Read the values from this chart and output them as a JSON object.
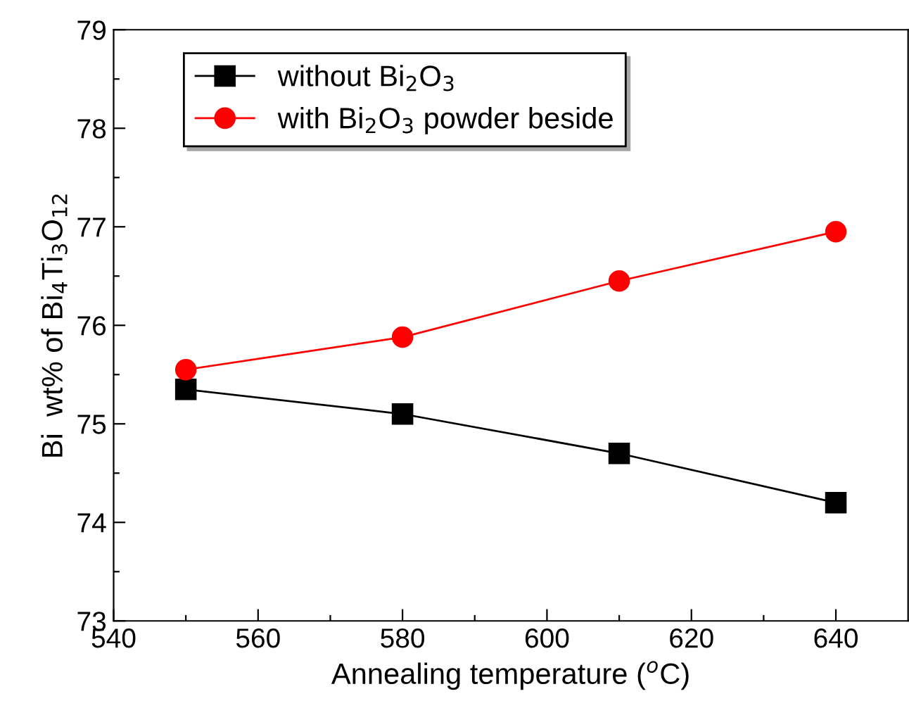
{
  "chart_data": {
    "type": "line",
    "xlabel": "Annealing temperature ($^{o}$C)",
    "ylabel": "Bi  wt% of Bi$_{4}$Ti$_{3}$O$_{12}$",
    "x": [
      550,
      580,
      610,
      640
    ],
    "series": [
      {
        "name": "without Bi$_{2}$O$_{3}$",
        "color": "#000000",
        "marker": "square",
        "values": [
          75.35,
          75.1,
          74.7,
          74.2
        ]
      },
      {
        "name": "with Bi$_{2}$O$_{3}$ powder beside",
        "color": "#ff0000",
        "marker": "circle",
        "values": [
          75.55,
          75.88,
          76.45,
          76.95
        ]
      }
    ],
    "xlim": [
      540,
      650
    ],
    "xticks": [
      540,
      {
        "value": 550,
        "label": null
      },
      560,
      {
        "value": 570,
        "label": null
      },
      580,
      {
        "value": 590,
        "label": null
      },
      600,
      {
        "value": 610,
        "label": null
      },
      620,
      {
        "value": 630,
        "label": null
      },
      640
    ],
    "ylim": [
      73,
      79
    ],
    "yticks": [
      73,
      {
        "value": 73.5,
        "label": null
      },
      74,
      {
        "value": 74.5,
        "label": null
      },
      75,
      {
        "value": 75.5,
        "label": null
      },
      76,
      {
        "value": 76.5,
        "label": null
      },
      77,
      {
        "value": 77.5,
        "label": null
      },
      78,
      {
        "value": 78.5,
        "label": null
      },
      79
    ],
    "grid": false,
    "legend": "top left",
    "line_style": "solid"
  }
}
